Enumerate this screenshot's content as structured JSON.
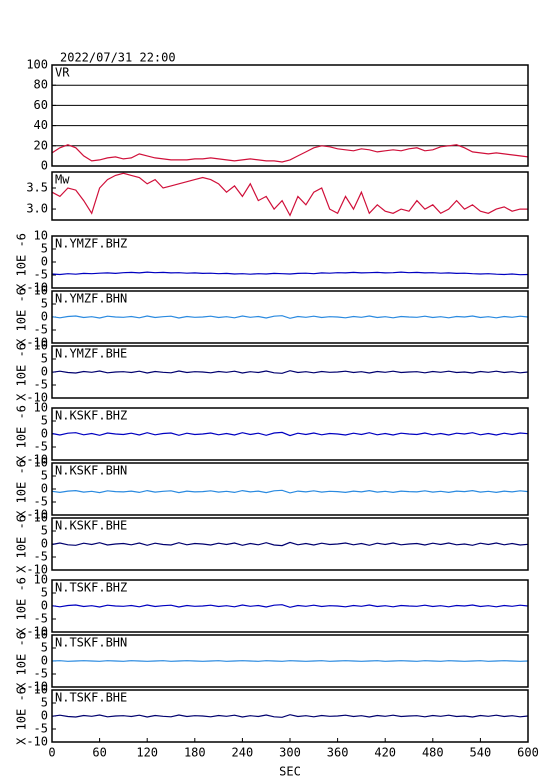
{
  "chart_data": {
    "type": "panels",
    "title": "2022/07/31 22:00",
    "xlabel": "SEC",
    "xlim": [
      0,
      600
    ],
    "xticks": [
      0,
      60,
      120,
      180,
      240,
      300,
      360,
      420,
      480,
      540,
      600
    ],
    "x": [
      0,
      10,
      20,
      30,
      40,
      50,
      60,
      70,
      80,
      90,
      100,
      110,
      120,
      130,
      140,
      150,
      160,
      170,
      180,
      190,
      200,
      210,
      220,
      230,
      240,
      250,
      260,
      270,
      280,
      290,
      300,
      310,
      320,
      330,
      340,
      350,
      360,
      370,
      380,
      390,
      400,
      410,
      420,
      430,
      440,
      450,
      460,
      470,
      480,
      490,
      500,
      510,
      520,
      530,
      540,
      550,
      560,
      570,
      580,
      590,
      600
    ],
    "panels": [
      {
        "type": "line",
        "label": "VR",
        "ylim": [
          0,
          100
        ],
        "yticks": [
          0,
          20,
          40,
          60,
          80,
          100
        ],
        "grid": true,
        "series": [
          {
            "color": "#d0103a",
            "values": [
              13,
              18,
              21,
              18,
              10,
              5,
              6,
              8,
              9,
              7,
              8,
              12,
              10,
              8,
              7,
              6,
              6,
              6,
              7,
              7,
              8,
              7,
              6,
              5,
              6,
              7,
              6,
              5,
              5,
              4,
              6,
              10,
              14,
              18,
              20,
              19,
              17,
              16,
              15,
              17,
              16,
              14,
              15,
              16,
              15,
              17,
              18,
              15,
              16,
              19,
              20,
              21,
              18,
              14,
              13,
              12,
              13,
              12,
              11,
              10,
              9
            ]
          }
        ]
      },
      {
        "type": "line",
        "label": "Mw",
        "ylim": [
          2.74,
          3.88
        ],
        "yticks": [
          {
            "value": 3,
            "label": "3.0"
          },
          3.5
        ],
        "grid": false,
        "series": [
          {
            "color": "#d0103a",
            "values": [
              3.4,
              3.3,
              3.5,
              3.45,
              3.2,
              2.9,
              3.5,
              3.7,
              3.8,
              3.85,
              3.8,
              3.75,
              3.6,
              3.7,
              3.5,
              3.55,
              3.6,
              3.65,
              3.7,
              3.75,
              3.7,
              3.6,
              3.4,
              3.55,
              3.3,
              3.6,
              3.2,
              3.3,
              3.0,
              3.2,
              2.85,
              3.3,
              3.1,
              3.4,
              3.5,
              3.0,
              2.9,
              3.3,
              3.0,
              3.4,
              2.9,
              3.1,
              2.95,
              2.9,
              3.0,
              2.95,
              3.2,
              3.0,
              3.1,
              2.9,
              3.0,
              3.2,
              3.0,
              3.1,
              2.95,
              2.9,
              3.0,
              3.05,
              2.95,
              3.0,
              3.0
            ]
          }
        ]
      },
      {
        "type": "line",
        "label": "N.YMZF.BHZ",
        "ylabel": "X 10E -6",
        "ylim": [
          -10,
          10
        ],
        "yticks": [
          -10,
          -5,
          0,
          5,
          10
        ],
        "grid": false,
        "series": [
          {
            "color": "#0000c0",
            "values": [
              -4.6,
              -4.8,
              -4.5,
              -4.7,
              -4.4,
              -4.5,
              -4.3,
              -4.2,
              -4.4,
              -4.1,
              -4.0,
              -4.2,
              -3.9,
              -4.1,
              -4.0,
              -4.2,
              -4.1,
              -4.3,
              -4.2,
              -4.4,
              -4.3,
              -4.5,
              -4.4,
              -4.6,
              -4.5,
              -4.7,
              -4.5,
              -4.6,
              -4.4,
              -4.5,
              -4.6,
              -4.4,
              -4.3,
              -4.5,
              -4.2,
              -4.3,
              -4.1,
              -4.2,
              -4.0,
              -4.2,
              -4.1,
              -4.0,
              -4.2,
              -4.1,
              -3.9,
              -4.1,
              -4.0,
              -4.2,
              -4.1,
              -4.3,
              -4.2,
              -4.4,
              -4.3,
              -4.5,
              -4.6,
              -4.5,
              -4.7,
              -4.8,
              -4.6,
              -4.9,
              -4.8
            ]
          }
        ]
      },
      {
        "type": "line",
        "label": "N.YMZF.BHN",
        "ylabel": "X 10E -6",
        "ylim": [
          -10,
          10
        ],
        "yticks": [
          -10,
          -5,
          0,
          5,
          10
        ],
        "grid": false,
        "series": [
          {
            "color": "#2a8ae0",
            "values": [
              0.1,
              -0.3,
              0.2,
              0.4,
              -0.2,
              0.1,
              -0.4,
              0.3,
              0.0,
              -0.1,
              0.2,
              -0.3,
              0.4,
              -0.2,
              0.1,
              0.3,
              -0.4,
              0.2,
              -0.1,
              0.0,
              0.3,
              -0.2,
              0.1,
              -0.3,
              0.4,
              -0.1,
              0.2,
              -0.4,
              0.3,
              0.5,
              -0.5,
              0.2,
              -0.1,
              0.3,
              -0.2,
              0.1,
              0.0,
              -0.3,
              0.2,
              -0.1,
              0.4,
              -0.2,
              0.1,
              -0.3,
              0.2,
              0.0,
              -0.1,
              0.3,
              -0.2,
              0.1,
              -0.3,
              0.2,
              0.0,
              0.4,
              -0.2,
              0.1,
              -0.3,
              0.2,
              -0.1,
              0.3,
              0.0
            ]
          }
        ]
      },
      {
        "type": "line",
        "label": "N.YMZF.BHE",
        "ylabel": "X 10E -6",
        "ylim": [
          -10,
          10
        ],
        "yticks": [
          -10,
          -5,
          0,
          5,
          10
        ],
        "grid": false,
        "series": [
          {
            "color": "#00006e",
            "values": [
              -0.1,
              0.3,
              -0.2,
              -0.4,
              0.2,
              -0.1,
              0.4,
              -0.3,
              0.0,
              0.1,
              -0.2,
              0.3,
              -0.4,
              0.2,
              -0.1,
              -0.3,
              0.4,
              -0.2,
              0.1,
              0.0,
              -0.3,
              0.2,
              -0.1,
              0.3,
              -0.4,
              0.1,
              -0.2,
              0.4,
              -0.3,
              -0.5,
              0.5,
              -0.2,
              0.1,
              -0.3,
              0.2,
              -0.1,
              0.0,
              0.3,
              -0.2,
              0.1,
              -0.4,
              0.2,
              -0.1,
              0.3,
              -0.2,
              0.0,
              0.1,
              -0.3,
              0.2,
              -0.1,
              0.3,
              -0.2,
              0.0,
              -0.4,
              0.2,
              -0.1,
              0.3,
              -0.2,
              0.1,
              -0.3,
              0.0
            ]
          }
        ]
      },
      {
        "type": "line",
        "label": "N.KSKF.BHZ",
        "ylabel": "X 10E -6",
        "ylim": [
          -10,
          10
        ],
        "yticks": [
          -10,
          -5,
          0,
          5,
          10
        ],
        "grid": false,
        "series": [
          {
            "color": "#0000c0",
            "values": [
              0.2,
              -0.4,
              0.3,
              0.5,
              -0.3,
              0.2,
              -0.5,
              0.4,
              0.0,
              -0.2,
              0.3,
              -0.4,
              0.5,
              -0.3,
              0.2,
              0.4,
              -0.5,
              0.3,
              -0.2,
              0.0,
              0.4,
              -0.3,
              0.2,
              -0.4,
              0.5,
              -0.2,
              0.3,
              -0.5,
              0.4,
              0.6,
              -0.6,
              0.3,
              -0.2,
              0.4,
              -0.3,
              0.2,
              0.0,
              -0.4,
              0.3,
              -0.2,
              0.5,
              -0.3,
              0.2,
              -0.4,
              0.3,
              0.0,
              -0.2,
              0.4,
              -0.3,
              0.2,
              -0.4,
              0.3,
              0.0,
              0.5,
              -0.3,
              0.2,
              -0.4,
              0.3,
              -0.2,
              0.4,
              0.1
            ]
          }
        ]
      },
      {
        "type": "line",
        "label": "N.KSKF.BHN",
        "ylabel": "X 10E -6",
        "ylim": [
          -10,
          10
        ],
        "yticks": [
          -10,
          -5,
          0,
          5,
          10
        ],
        "grid": false,
        "series": [
          {
            "color": "#2a8ae0",
            "values": [
              -0.9,
              -1.3,
              -0.8,
              -0.6,
              -1.2,
              -0.9,
              -1.4,
              -0.7,
              -1.0,
              -1.1,
              -0.8,
              -1.3,
              -0.6,
              -1.2,
              -0.9,
              -0.7,
              -1.4,
              -0.8,
              -1.1,
              -1.0,
              -0.7,
              -1.2,
              -0.9,
              -1.3,
              -0.6,
              -1.1,
              -0.8,
              -1.4,
              -0.7,
              -0.5,
              -1.5,
              -0.8,
              -1.1,
              -0.7,
              -1.2,
              -0.9,
              -1.0,
              -1.3,
              -0.8,
              -1.1,
              -0.6,
              -1.2,
              -0.9,
              -1.3,
              -0.8,
              -1.0,
              -1.1,
              -0.7,
              -1.2,
              -0.9,
              -1.3,
              -0.8,
              -1.0,
              -0.6,
              -1.2,
              -0.9,
              -1.3,
              -0.8,
              -1.1,
              -0.7,
              -1.0
            ]
          }
        ]
      },
      {
        "type": "line",
        "label": "N.KSKF.BHE",
        "ylabel": "X 10E -6",
        "ylim": [
          -10,
          10
        ],
        "yticks": [
          -10,
          -5,
          0,
          5,
          10
        ],
        "grid": false,
        "series": [
          {
            "color": "#00006e",
            "values": [
              -0.2,
              0.4,
              -0.3,
              -0.5,
              0.3,
              -0.2,
              0.5,
              -0.4,
              0.0,
              0.2,
              -0.3,
              0.4,
              -0.5,
              0.3,
              -0.2,
              -0.4,
              0.5,
              -0.3,
              0.2,
              0.0,
              -0.4,
              0.3,
              -0.2,
              0.4,
              -0.5,
              0.2,
              -0.3,
              0.5,
              -0.4,
              -0.6,
              0.6,
              -0.3,
              0.2,
              -0.4,
              0.3,
              -0.2,
              0.0,
              0.4,
              -0.3,
              0.2,
              -0.5,
              0.3,
              -0.2,
              0.4,
              -0.3,
              0.0,
              0.2,
              -0.4,
              0.3,
              -0.2,
              0.4,
              -0.3,
              0.0,
              -0.5,
              0.3,
              -0.2,
              0.4,
              -0.3,
              0.2,
              -0.4,
              -0.1
            ]
          }
        ]
      },
      {
        "type": "line",
        "label": "N.TSKF.BHZ",
        "ylabel": "X 10E -6",
        "ylim": [
          -10,
          10
        ],
        "yticks": [
          -10,
          -5,
          0,
          5,
          10
        ],
        "grid": false,
        "series": [
          {
            "color": "#0000c0",
            "values": [
              0.1,
              -0.3,
              0.2,
              0.4,
              -0.2,
              0.1,
              -0.4,
              0.3,
              0.0,
              -0.1,
              0.2,
              -0.3,
              0.4,
              -0.2,
              0.1,
              0.3,
              -0.4,
              0.2,
              -0.1,
              0.0,
              0.3,
              -0.2,
              0.1,
              -0.3,
              0.4,
              -0.1,
              0.2,
              -0.4,
              0.3,
              0.5,
              -0.5,
              0.2,
              -0.1,
              0.3,
              -0.2,
              0.1,
              0.0,
              -0.3,
              0.2,
              -0.1,
              0.4,
              -0.2,
              0.1,
              -0.3,
              0.2,
              0.0,
              -0.1,
              0.3,
              -0.2,
              0.1,
              -0.3,
              0.2,
              0.0,
              0.4,
              -0.2,
              0.1,
              -0.3,
              0.2,
              -0.1,
              0.3,
              0.0
            ]
          }
        ]
      },
      {
        "type": "line",
        "label": "N.TSKF.BHN",
        "ylabel": "X 10E -6",
        "ylim": [
          -10,
          10
        ],
        "yticks": [
          -10,
          -5,
          0,
          5,
          10
        ],
        "grid": false,
        "series": [
          {
            "color": "#2a8ae0",
            "values": [
              0.0,
              0.1,
              -0.1,
              0.0,
              0.1,
              0.0,
              -0.1,
              0.1,
              0.0,
              -0.1,
              0.1,
              0.0,
              -0.1,
              0.0,
              0.1,
              -0.1,
              0.0,
              0.1,
              0.0,
              -0.1,
              0.0,
              0.1,
              -0.1,
              0.0,
              0.1,
              0.0,
              -0.1,
              0.1,
              0.0,
              -0.1,
              0.1,
              0.0,
              -0.1,
              0.0,
              0.1,
              -0.1,
              0.0,
              0.1,
              0.0,
              -0.1,
              0.0,
              0.1,
              -0.1,
              0.0,
              0.1,
              0.0,
              -0.1,
              0.1,
              0.0,
              -0.1,
              0.1,
              0.0,
              -0.1,
              0.0,
              0.1,
              -0.1,
              0.0,
              0.1,
              0.0,
              -0.1,
              0.0
            ]
          }
        ]
      },
      {
        "type": "line",
        "label": "N.TSKF.BHE",
        "ylabel": "X 10E -6",
        "ylim": [
          -10,
          10
        ],
        "yticks": [
          -10,
          -5,
          0,
          5,
          10
        ],
        "grid": false,
        "series": [
          {
            "color": "#00006e",
            "values": [
              -0.1,
              0.3,
              -0.2,
              -0.4,
              0.2,
              -0.1,
              0.4,
              -0.3,
              0.0,
              0.1,
              -0.2,
              0.3,
              -0.4,
              0.2,
              -0.1,
              -0.3,
              0.4,
              -0.2,
              0.1,
              0.0,
              -0.3,
              0.2,
              -0.1,
              0.3,
              -0.4,
              0.1,
              -0.2,
              0.4,
              -0.3,
              -0.5,
              0.5,
              -0.2,
              0.1,
              -0.3,
              0.2,
              -0.1,
              0.0,
              0.3,
              -0.2,
              0.1,
              -0.4,
              0.2,
              -0.1,
              0.3,
              -0.2,
              0.0,
              0.1,
              -0.3,
              0.2,
              -0.1,
              0.3,
              -0.2,
              0.0,
              -0.4,
              0.2,
              -0.1,
              0.3,
              -0.2,
              0.1,
              -0.3,
              0.0
            ]
          }
        ]
      }
    ]
  }
}
